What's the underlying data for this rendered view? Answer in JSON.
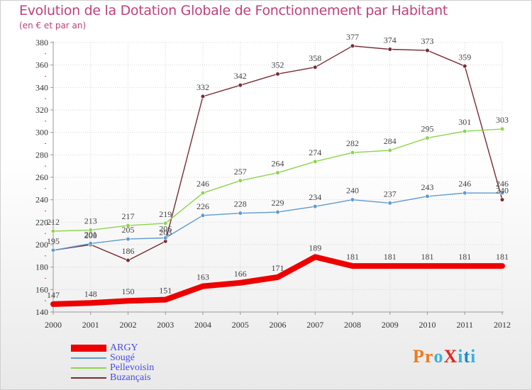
{
  "title": "Evolution de la Dotation Globale de Fonctionnement par Habitant",
  "subtitle": "(en € et par an)",
  "brand": {
    "text": "ProXiti",
    "colors": [
      "#f07a1a",
      "#f07a1a",
      "#3cb0e0",
      "#e0261a",
      "#3cb0e0",
      "#1a8ac8",
      "#3cb0e0"
    ]
  },
  "chart_data": {
    "type": "line",
    "title": "Evolution de la Dotation Globale de Fonctionnement par Habitant",
    "subtitle": "(en € et par an)",
    "xlabel": "",
    "ylabel": "",
    "x": [
      "2000",
      "2001",
      "2002",
      "2003",
      "2004",
      "2005",
      "2006",
      "2007",
      "2008",
      "2009",
      "2010",
      "2011",
      "2012"
    ],
    "ylim": [
      140,
      380
    ],
    "yticks": [
      140,
      160,
      180,
      200,
      220,
      240,
      260,
      280,
      300,
      320,
      340,
      360,
      380
    ],
    "grid": true,
    "legend_position": "bottom-left",
    "series": [
      {
        "name": "Buzançais",
        "color": "#7a2a34",
        "values": [
          195,
          200,
          186,
          203,
          332,
          342,
          352,
          358,
          377,
          374,
          373,
          359,
          240
        ]
      },
      {
        "name": "Pellevoisin",
        "color": "#8dd44c",
        "values": [
          212,
          213,
          217,
          219,
          246,
          257,
          264,
          274,
          282,
          284,
          295,
          301,
          303
        ]
      },
      {
        "name": "Sougé",
        "color": "#5e9bcf",
        "values": [
          195,
          201,
          205,
          206,
          226,
          228,
          229,
          234,
          240,
          237,
          243,
          246,
          246
        ]
      },
      {
        "name": "ARGY",
        "color": "#ee0000",
        "values": [
          147,
          148,
          150,
          151,
          163,
          166,
          171,
          189,
          181,
          181,
          181,
          181,
          181
        ]
      }
    ],
    "data_labels": {
      "Buzançais": [
        "195",
        "200",
        "186",
        "203",
        "332",
        "342",
        "352",
        "358",
        "377",
        "374",
        "373",
        "359",
        "240"
      ],
      "Pellevoisin": [
        "212",
        "213",
        "217",
        "219",
        "246",
        "257",
        "264",
        "274",
        "282",
        "284",
        "295",
        "301",
        "303"
      ],
      "Sougé": [
        "",
        "201",
        "205",
        "206",
        "226",
        "228",
        "229",
        "234",
        "240",
        "237",
        "243",
        "246",
        "246"
      ],
      "ARGY": [
        "147",
        "148",
        "150",
        "151",
        "163",
        "166",
        "171",
        "189",
        "181",
        "181",
        "181",
        "181",
        "181"
      ]
    },
    "legend": [
      "ARGY",
      "Sougé",
      "Pellevoisin",
      "Buzançais"
    ]
  }
}
